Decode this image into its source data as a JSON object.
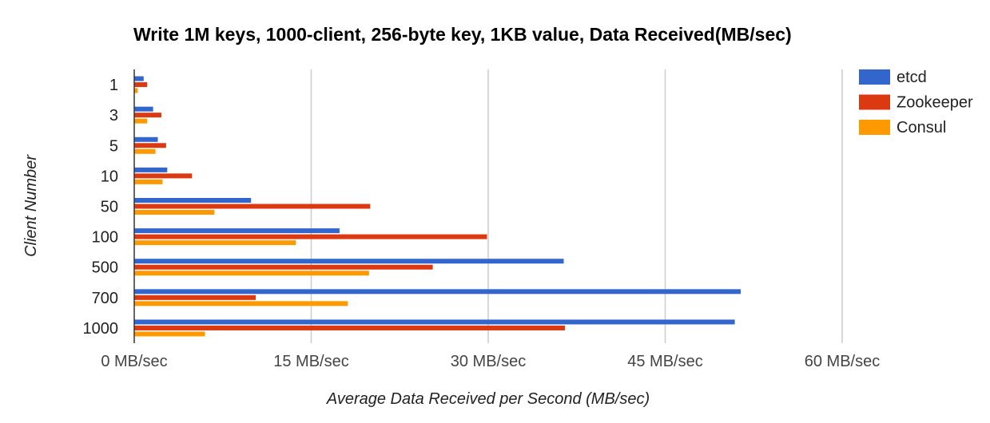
{
  "chart_data": {
    "type": "bar",
    "orientation": "horizontal",
    "title": "Write 1M keys, 1000-client, 256-byte key, 1KB value, Data Received(MB/sec)",
    "xlabel": "Average Data Received per Second (MB/sec)",
    "ylabel": "Client Number",
    "categories": [
      "1",
      "3",
      "5",
      "10",
      "50",
      "100",
      "500",
      "700",
      "1000"
    ],
    "series": [
      {
        "name": "etcd",
        "color": "#3366cc",
        "values": [
          0.8,
          1.6,
          2.0,
          2.8,
          9.9,
          17.4,
          36.4,
          51.4,
          50.9
        ]
      },
      {
        "name": "Zookeeper",
        "color": "#dc3912",
        "values": [
          1.1,
          2.3,
          2.7,
          4.9,
          20.0,
          29.9,
          25.3,
          10.3,
          36.5
        ]
      },
      {
        "name": "Consul",
        "color": "#ff9900",
        "values": [
          0.3,
          1.1,
          1.8,
          2.4,
          6.8,
          13.7,
          19.9,
          18.1,
          6.0
        ]
      }
    ],
    "xlim": [
      0,
      60
    ],
    "xticks": [
      0,
      15,
      30,
      45,
      60
    ],
    "xtick_labels": [
      "0 MB/sec",
      "15 MB/sec",
      "30 MB/sec",
      "45 MB/sec",
      "60 MB/sec"
    ],
    "grid": true,
    "legend_position": "top-right"
  }
}
